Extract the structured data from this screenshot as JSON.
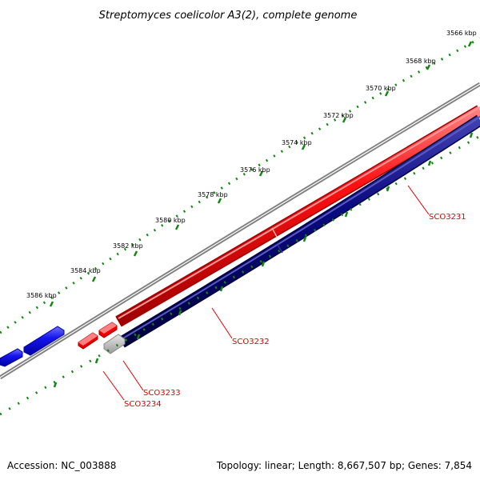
{
  "title": "Streptomyces coelicolor A3(2), complete genome",
  "footer": {
    "accession": "Accession: NC_003888",
    "summary": "Topology: linear; Length: 8,667,507 bp; Genes: 7,854"
  },
  "ticks": [
    {
      "label": "3566 kbp"
    },
    {
      "label": "3568 kbp"
    },
    {
      "label": "3570 kbp"
    },
    {
      "label": "3572 kbp"
    },
    {
      "label": "3574 kbp"
    },
    {
      "label": "3576 kbp"
    },
    {
      "label": "3578 kbp"
    },
    {
      "label": "3580 kbp"
    },
    {
      "label": "3582 kbp"
    },
    {
      "label": "3584 kbp"
    },
    {
      "label": "3586 kbp"
    }
  ],
  "genes": [
    {
      "label": "SCO3231"
    },
    {
      "label": "SCO3232"
    },
    {
      "label": "SCO3233"
    },
    {
      "label": "SCO3234"
    }
  ],
  "colors": {
    "forward_strand": "#ee0000",
    "reverse_strand": "#00007a",
    "other_genes": "#1010ee",
    "backbone": "#808080",
    "tick_marks": "#118811",
    "gene_label": "#e00000"
  }
}
